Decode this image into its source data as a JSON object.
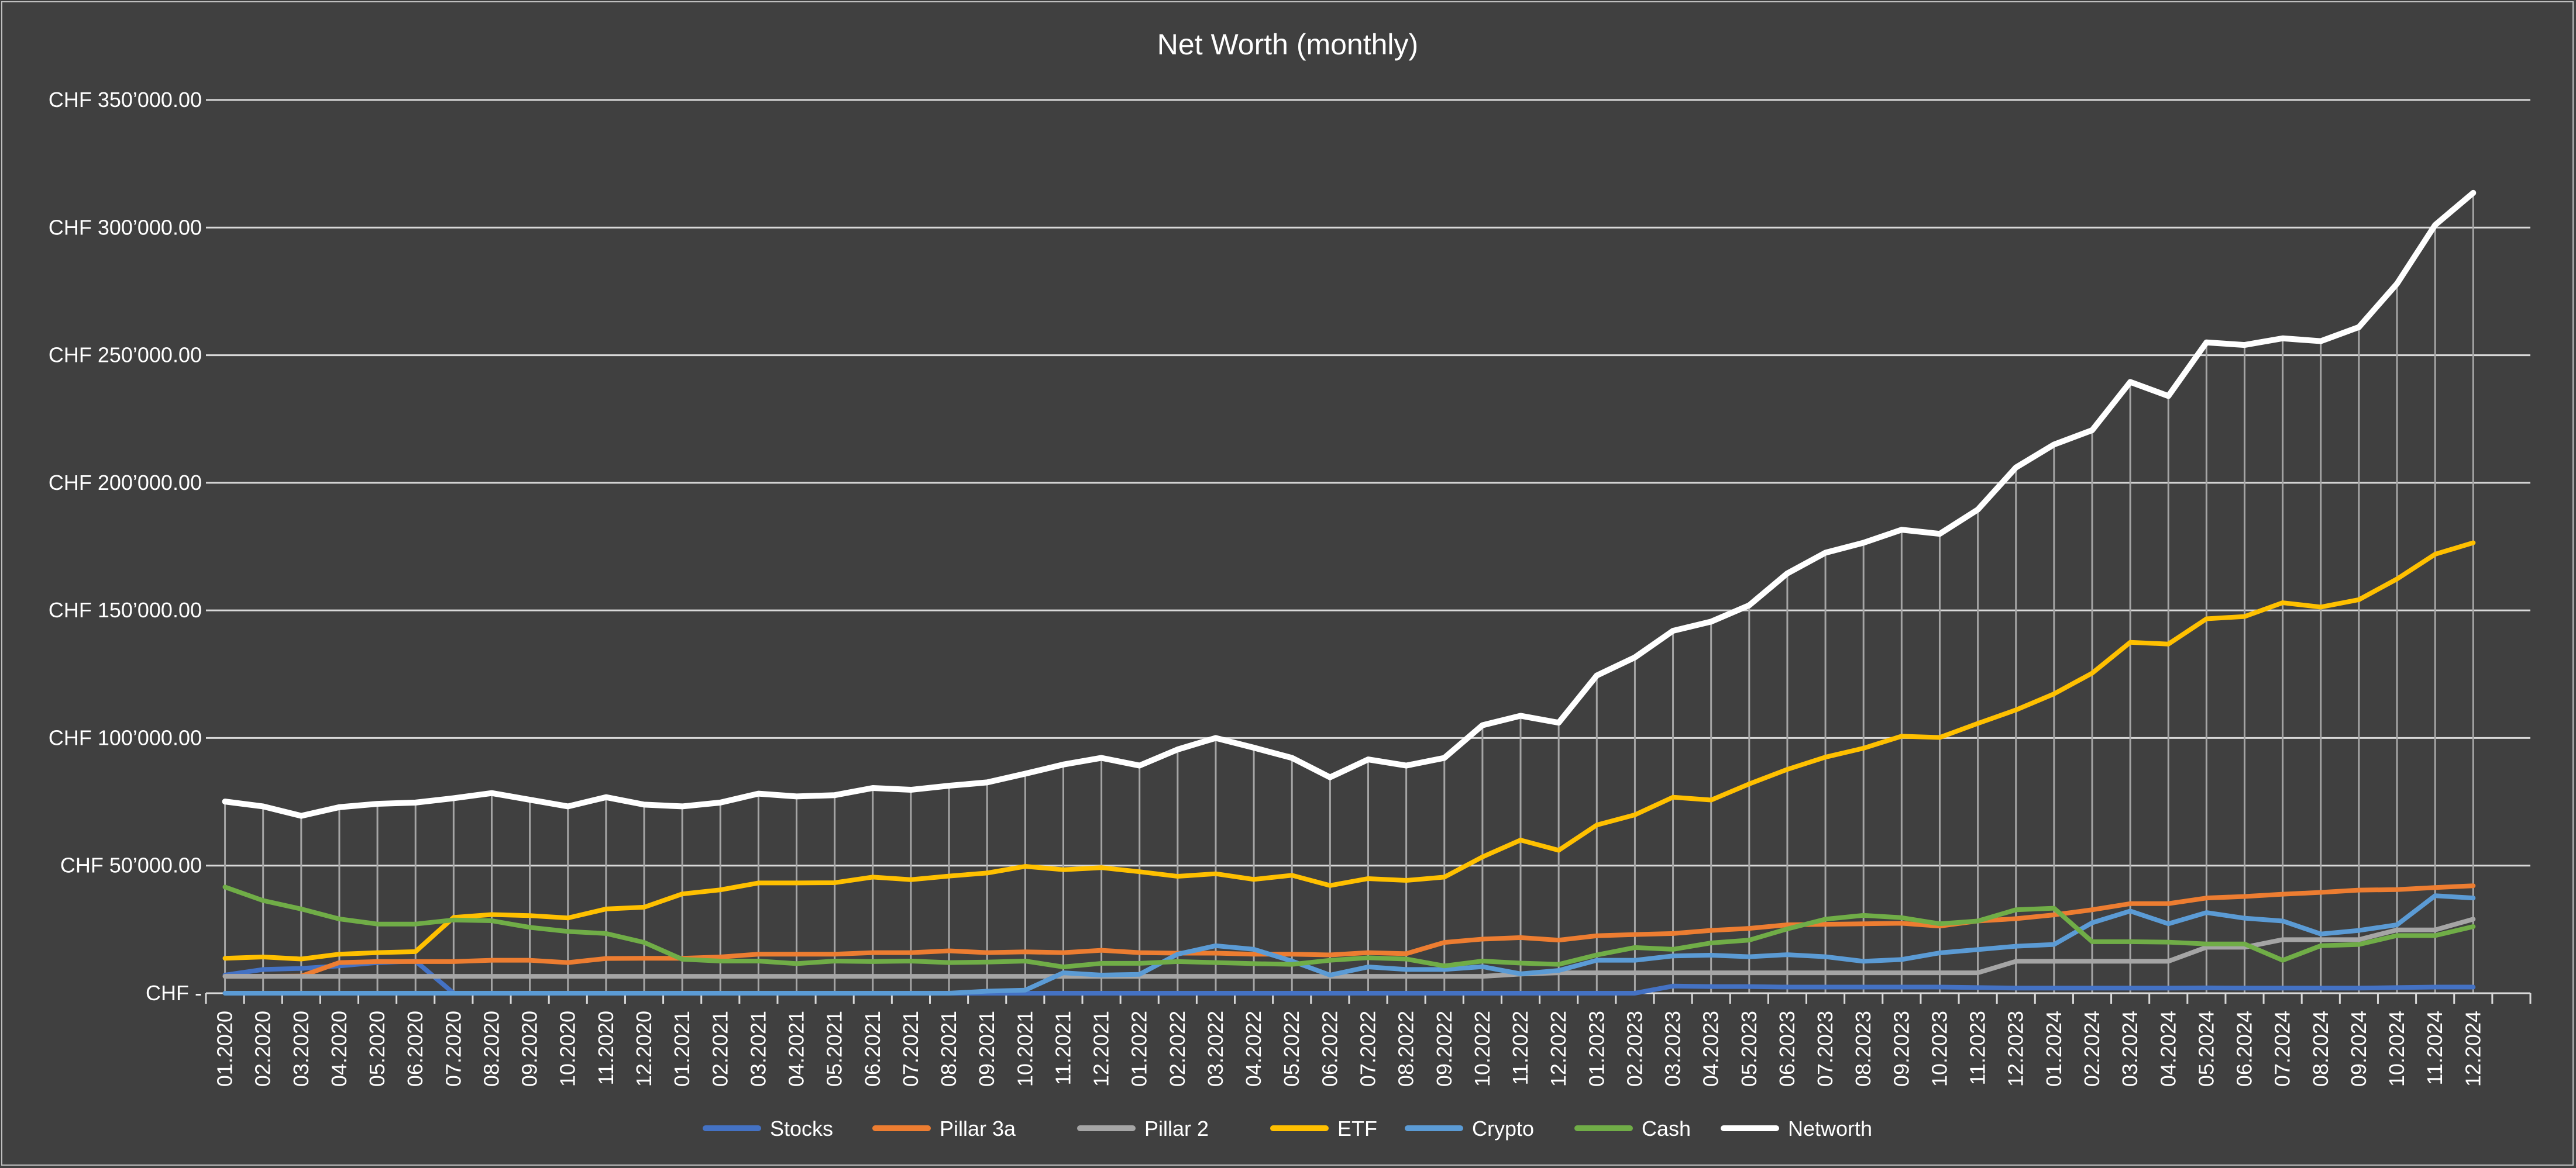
{
  "chart_data": {
    "type": "line",
    "title": "Net Worth (monthly)",
    "xlabel": "",
    "ylabel": "",
    "ylim": [
      0,
      350000
    ],
    "y_ticks": [
      0,
      50000,
      100000,
      150000,
      200000,
      250000,
      300000,
      350000
    ],
    "y_tick_labels": [
      "CHF -",
      "CHF 50’000.00",
      "CHF 100’000.00",
      "CHF 150’000.00",
      "CHF 200’000.00",
      "CHF 250’000.00",
      "CHF 300’000.00",
      "CHF 350’000.00"
    ],
    "grid": true,
    "drop_lines": true,
    "legend_position": "bottom",
    "categories": [
      "01.2020",
      "02.2020",
      "03.2020",
      "04.2020",
      "05.2020",
      "06.2020",
      "07.2020",
      "08.2020",
      "09.2020",
      "10.2020",
      "11.2020",
      "12.2020",
      "01.2021",
      "02.2021",
      "03.2021",
      "04.2021",
      "05.2021",
      "06.2021",
      "07.2021",
      "08.2021",
      "09.2021",
      "10.2021",
      "11.2021",
      "12.2021",
      "01.2022",
      "02.2022",
      "03.2022",
      "04.2022",
      "05.2022",
      "06.2022",
      "07.2022",
      "08.2022",
      "09.2022",
      "10.2022",
      "11.2022",
      "12.2022",
      "01.2023",
      "02.2023",
      "03.2023",
      "04.2023",
      "05.2023",
      "06.2023",
      "07.2023",
      "08.2023",
      "09.2023",
      "10.2023",
      "11.2023",
      "12.2023",
      "01.2024",
      "02.2024",
      "03.2024",
      "04.2024",
      "05.2024",
      "06.2024",
      "07.2024",
      "08.2024",
      "09.2024",
      "10.2024",
      "11.2024",
      "12.2024"
    ],
    "series": [
      {
        "name": "Stocks",
        "color": "#4472c4",
        "values": [
          7100,
          9300,
          9700,
          10700,
          12000,
          12600,
          0,
          0,
          0,
          0,
          0,
          0,
          0,
          0,
          0,
          0,
          0,
          0,
          0,
          0,
          0,
          0,
          0,
          0,
          0,
          0,
          0,
          0,
          0,
          0,
          0,
          0,
          0,
          0,
          0,
          0,
          0,
          0,
          2800,
          2600,
          2600,
          2400,
          2400,
          2400,
          2400,
          2400,
          2200,
          2000,
          2000,
          2000,
          2000,
          2000,
          2100,
          2000,
          2000,
          2000,
          2000,
          2200,
          2400,
          2400
        ]
      },
      {
        "name": "Pillar 3a",
        "color": "#ed7d31",
        "values": [
          6600,
          6600,
          6700,
          12000,
          12400,
          12400,
          12400,
          12900,
          12900,
          12000,
          13600,
          13700,
          13700,
          14200,
          15300,
          15300,
          15300,
          15900,
          15900,
          16600,
          15900,
          16200,
          15900,
          16800,
          15900,
          15700,
          15700,
          15300,
          15300,
          15000,
          15900,
          15500,
          19900,
          21200,
          21800,
          20800,
          22500,
          23000,
          23400,
          24600,
          25400,
          26800,
          27000,
          27200,
          27400,
          26300,
          28300,
          29200,
          30700,
          32700,
          35100,
          35100,
          37300,
          37900,
          38800,
          39500,
          40400,
          40600,
          41400,
          42100
        ]
      },
      {
        "name": "Pillar 2",
        "color": "#a5a5a5",
        "values": [
          6600,
          6600,
          6600,
          6600,
          6600,
          6600,
          6600,
          6600,
          6600,
          6600,
          6600,
          6600,
          6600,
          6600,
          6600,
          6600,
          6600,
          6600,
          6600,
          6600,
          6600,
          6600,
          6600,
          6600,
          6600,
          6600,
          6600,
          6600,
          6600,
          6600,
          6600,
          6600,
          6600,
          6600,
          7500,
          8000,
          8000,
          8000,
          8000,
          8000,
          8000,
          8000,
          8000,
          8000,
          8000,
          8000,
          8000,
          12500,
          12500,
          12500,
          12500,
          12500,
          18000,
          18000,
          21000,
          21000,
          21000,
          24800,
          24800,
          29000
        ]
      },
      {
        "name": "ETF",
        "color": "#ffc000",
        "values": [
          13700,
          14200,
          13400,
          15300,
          15900,
          16300,
          29700,
          30800,
          30400,
          29500,
          33000,
          33700,
          38900,
          40500,
          43200,
          43200,
          43300,
          45500,
          44500,
          45900,
          47100,
          49700,
          48400,
          49200,
          47600,
          45800,
          46800,
          44600,
          46200,
          42200,
          44900,
          44200,
          45500,
          53400,
          60000,
          56000,
          65900,
          69900,
          76800,
          75700,
          82000,
          87700,
          92500,
          96000,
          100700,
          100200,
          105700,
          111000,
          117300,
          125400,
          137500,
          136800,
          146700,
          147600,
          153000,
          151300,
          154200,
          162300,
          172000,
          176500
        ]
      },
      {
        "name": "Crypto",
        "color": "#5b9bd5",
        "values": [
          0,
          0,
          0,
          0,
          0,
          0,
          0,
          0,
          0,
          0,
          0,
          0,
          0,
          0,
          0,
          0,
          0,
          0,
          0,
          0,
          800,
          1200,
          8000,
          7100,
          7400,
          15300,
          18600,
          17200,
          12600,
          7100,
          10300,
          9300,
          9300,
          10400,
          7600,
          8900,
          12900,
          12900,
          14600,
          14900,
          14300,
          15100,
          14300,
          12500,
          13200,
          15800,
          17100,
          18400,
          19100,
          27600,
          32200,
          27200,
          31600,
          29400,
          28300,
          23200,
          24600,
          26800,
          38200,
          37300
        ]
      },
      {
        "name": "Cash",
        "color": "#70ad47",
        "values": [
          41600,
          36300,
          33000,
          29100,
          27100,
          27100,
          28700,
          28400,
          25800,
          24200,
          23400,
          19900,
          13300,
          12600,
          12600,
          11600,
          12600,
          12400,
          12600,
          12000,
          12200,
          12600,
          10300,
          11700,
          11700,
          12400,
          12000,
          11600,
          11300,
          12900,
          13900,
          13400,
          10700,
          12600,
          11800,
          11300,
          15000,
          17900,
          17200,
          19700,
          20800,
          25200,
          29000,
          30500,
          29600,
          27200,
          28300,
          32700,
          33300,
          20200,
          20200,
          20000,
          19300,
          19300,
          12900,
          18600,
          19100,
          22600,
          22600,
          26100
        ]
      },
      {
        "name": "Networth",
        "color": "#ffffff",
        "values": [
          75100,
          73200,
          69500,
          72900,
          74200,
          74700,
          76400,
          78400,
          75800,
          73200,
          76800,
          73900,
          73200,
          74700,
          78200,
          77100,
          77600,
          80400,
          79700,
          81300,
          82600,
          86000,
          89600,
          92200,
          89200,
          95500,
          100000,
          96200,
          92200,
          84600,
          91600,
          89200,
          92200,
          105000,
          108700,
          106000,
          124500,
          131600,
          142000,
          145600,
          152000,
          164500,
          172600,
          176500,
          181600,
          180000,
          189500,
          206000,
          215000,
          220600,
          239500,
          234000,
          255000,
          254000,
          256600,
          255500,
          261000,
          278000,
          301000,
          313600
        ]
      }
    ]
  }
}
